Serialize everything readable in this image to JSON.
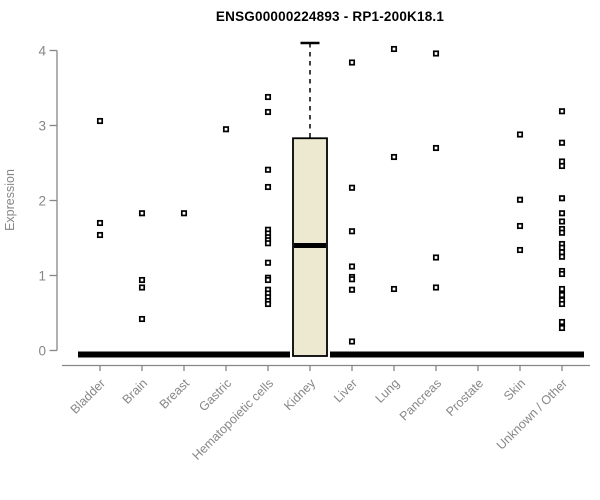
{
  "chart_data": {
    "type": "boxplot",
    "title": "ENSG00000224893 - RP1-200K18.1",
    "ylabel": "Expression",
    "xlabel": "",
    "ylim": [
      0,
      4.1
    ],
    "yticks": [
      0,
      1,
      2,
      3,
      4
    ],
    "grid": false,
    "legend": "none",
    "marker": "open-square",
    "colors": {
      "box_fill": "#EDE8D0",
      "ink": "#000000",
      "axis_text": "#878787",
      "axis_line": "#878787"
    },
    "groups": [
      {
        "label": "Bladder",
        "zero_bar": true,
        "box": null,
        "points": [
          3.06,
          1.7,
          1.54
        ]
      },
      {
        "label": "Brain",
        "zero_bar": true,
        "box": null,
        "points": [
          1.83,
          0.94,
          0.84,
          0.42
        ]
      },
      {
        "label": "Breast",
        "zero_bar": true,
        "box": null,
        "points": [
          1.83
        ]
      },
      {
        "label": "Gastric",
        "zero_bar": true,
        "box": null,
        "points": [
          2.95
        ]
      },
      {
        "label": "Hematopoietic cells",
        "zero_bar": true,
        "box": null,
        "points": [
          3.38,
          3.18,
          2.41,
          2.18,
          1.61,
          1.56,
          1.51,
          1.47,
          1.43,
          1.17,
          0.97,
          0.94,
          0.81,
          0.76,
          0.71,
          0.66,
          0.62
        ]
      },
      {
        "label": "Kidney",
        "zero_bar": false,
        "box": {
          "low": 0,
          "q1": 0,
          "median": 1.4,
          "q3": 2.83,
          "high": 4.1
        },
        "points": []
      },
      {
        "label": "Liver",
        "zero_bar": true,
        "box": null,
        "points": [
          3.84,
          2.17,
          1.59,
          1.12,
          0.98,
          0.95,
          0.81,
          0.12
        ]
      },
      {
        "label": "Lung",
        "zero_bar": true,
        "box": null,
        "points": [
          4.02,
          2.58,
          0.82
        ]
      },
      {
        "label": "Pancreas",
        "zero_bar": true,
        "box": null,
        "points": [
          3.96,
          2.7,
          1.24,
          0.84
        ]
      },
      {
        "label": "Prostate",
        "zero_bar": true,
        "box": null,
        "points": []
      },
      {
        "label": "Skin",
        "zero_bar": true,
        "box": null,
        "points": [
          2.88,
          2.01,
          1.66,
          1.34
        ]
      },
      {
        "label": "Unknown / Other",
        "zero_bar": true,
        "box": null,
        "points": [
          3.19,
          2.77,
          2.52,
          2.46,
          2.03,
          1.83,
          1.72,
          1.62,
          1.57,
          1.42,
          1.37,
          1.31,
          1.25,
          1.06,
          1.02,
          0.82,
          0.74,
          0.67,
          0.62,
          0.38,
          0.3
        ]
      }
    ]
  }
}
